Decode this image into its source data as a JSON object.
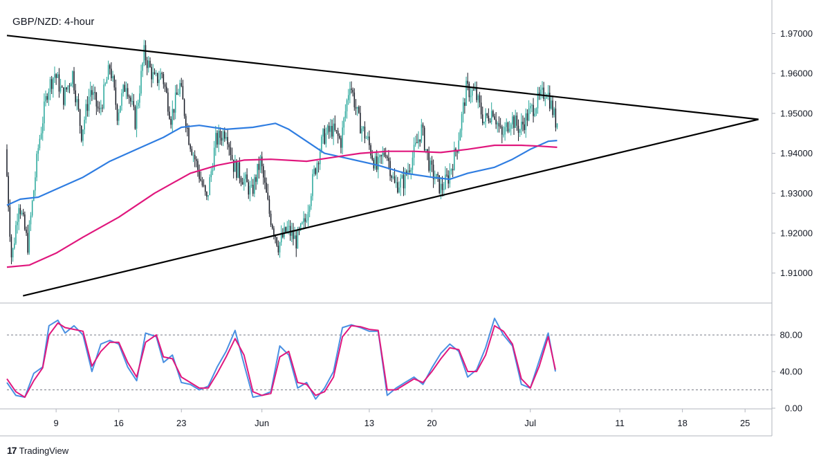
{
  "chart_data": [
    {
      "type": "candlestick",
      "title": "GBP/NZD: 4-hour",
      "ylim": [
        1.9025,
        1.977
      ],
      "y_ticks": [
        "1.97000",
        "1.96000",
        "1.95000",
        "1.94000",
        "1.93000",
        "1.92000",
        "1.91000"
      ],
      "y_tick_values": [
        1.97,
        1.96,
        1.95,
        1.94,
        1.93,
        1.92,
        1.91
      ],
      "x_ticks": [
        "9",
        "16",
        "23",
        "Jun",
        "13",
        "20",
        "Jul",
        "11",
        "18",
        "25"
      ],
      "x_tick_values": [
        9,
        16,
        23,
        32,
        44,
        51,
        62,
        72,
        79,
        86
      ],
      "xlim": [
        3.5,
        89
      ],
      "x_unit": "day index from May 1",
      "price_path": [
        [
          3.5,
          1.941
        ],
        [
          4.2,
          1.913
        ],
        [
          5.0,
          1.928
        ],
        [
          6.0,
          1.917
        ],
        [
          7.2,
          1.942
        ],
        [
          8.2,
          1.956
        ],
        [
          9.0,
          1.96
        ],
        [
          10.0,
          1.954
        ],
        [
          11.0,
          1.96
        ],
        [
          12.0,
          1.945
        ],
        [
          13.0,
          1.956
        ],
        [
          14.0,
          1.95
        ],
        [
          15.2,
          1.962
        ],
        [
          16.0,
          1.95
        ],
        [
          17.0,
          1.958
        ],
        [
          18.0,
          1.948
        ],
        [
          19.0,
          1.965
        ],
        [
          20.2,
          1.958
        ],
        [
          21.0,
          1.96
        ],
        [
          22.0,
          1.949
        ],
        [
          23.0,
          1.957
        ],
        [
          24.0,
          1.944
        ],
        [
          25.0,
          1.936
        ],
        [
          26.0,
          1.928
        ],
        [
          27.0,
          1.943
        ],
        [
          28.2,
          1.946
        ],
        [
          29.0,
          1.937
        ],
        [
          30.0,
          1.934
        ],
        [
          31.0,
          1.93
        ],
        [
          32.0,
          1.938
        ],
        [
          33.0,
          1.925
        ],
        [
          34.0,
          1.917
        ],
        [
          35.0,
          1.921
        ],
        [
          36.0,
          1.918
        ],
        [
          37.0,
          1.923
        ],
        [
          38.0,
          1.935
        ],
        [
          39.0,
          1.944
        ],
        [
          40.0,
          1.946
        ],
        [
          41.0,
          1.943
        ],
        [
          42.0,
          1.958
        ],
        [
          43.0,
          1.948
        ],
        [
          44.0,
          1.943
        ],
        [
          45.0,
          1.936
        ],
        [
          46.0,
          1.941
        ],
        [
          47.0,
          1.932
        ],
        [
          48.0,
          1.933
        ],
        [
          49.0,
          1.939
        ],
        [
          50.0,
          1.946
        ],
        [
          51.0,
          1.936
        ],
        [
          52.2,
          1.931
        ],
        [
          53.0,
          1.934
        ],
        [
          54.0,
          1.942
        ],
        [
          55.0,
          1.956
        ],
        [
          56.0,
          1.955
        ],
        [
          57.0,
          1.948
        ],
        [
          58.0,
          1.951
        ],
        [
          59.0,
          1.944
        ],
        [
          60.0,
          1.949
        ],
        [
          61.0,
          1.946
        ],
        [
          62.0,
          1.95
        ],
        [
          63.0,
          1.953
        ],
        [
          64.0,
          1.956
        ],
        [
          65.0,
          1.948
        ]
      ],
      "series": [
        {
          "name": "",
          "color": "#2f7de1",
          "values": [
            [
              3.5,
              1.927
            ],
            [
              5.0,
              1.9285
            ],
            [
              7.0,
              1.929
            ],
            [
              9.0,
              1.931
            ],
            [
              12.0,
              1.934
            ],
            [
              15.0,
              1.938
            ],
            [
              18.0,
              1.941
            ],
            [
              21.0,
              1.944
            ],
            [
              23.0,
              1.9465
            ],
            [
              25.0,
              1.947
            ],
            [
              28.0,
              1.946
            ],
            [
              31.0,
              1.9465
            ],
            [
              33.5,
              1.9475
            ],
            [
              35.0,
              1.946
            ],
            [
              37.0,
              1.943
            ],
            [
              39.0,
              1.94
            ],
            [
              42.0,
              1.9385
            ],
            [
              45.0,
              1.937
            ],
            [
              48.0,
              1.935
            ],
            [
              51.0,
              1.934
            ],
            [
              53.0,
              1.9335
            ],
            [
              55.0,
              1.935
            ],
            [
              58.0,
              1.9365
            ],
            [
              60.0,
              1.9385
            ],
            [
              62.0,
              1.941
            ],
            [
              64.0,
              1.943
            ],
            [
              65.0,
              1.9432
            ]
          ]
        },
        {
          "name": "",
          "color": "#e0177d",
          "values": [
            [
              3.5,
              1.9115
            ],
            [
              6.0,
              1.912
            ],
            [
              9.0,
              1.915
            ],
            [
              12.0,
              1.919
            ],
            [
              16.0,
              1.924
            ],
            [
              20.0,
              1.93
            ],
            [
              24.0,
              1.935
            ],
            [
              27.0,
              1.937
            ],
            [
              30.0,
              1.9383
            ],
            [
              33.0,
              1.9385
            ],
            [
              37.0,
              1.938
            ],
            [
              40.0,
              1.939
            ],
            [
              43.0,
              1.94
            ],
            [
              46.0,
              1.9405
            ],
            [
              49.0,
              1.9405
            ],
            [
              52.0,
              1.9402
            ],
            [
              55.0,
              1.941
            ],
            [
              58.0,
              1.942
            ],
            [
              61.0,
              1.942
            ],
            [
              63.0,
              1.9418
            ],
            [
              65.0,
              1.9415
            ]
          ]
        }
      ],
      "annotations": [
        {
          "type": "trendline",
          "from": [
            3.5,
            1.9695
          ],
          "to": [
            87.5,
            1.9485
          ]
        },
        {
          "type": "trendline",
          "from": [
            5.3,
            1.9043
          ],
          "to": [
            87.5,
            1.9485
          ]
        }
      ],
      "grid": false,
      "candle_up_color": "#26a69a",
      "candle_down_color": "#131722"
    },
    {
      "type": "line",
      "title": "",
      "ylim": [
        0,
        108
      ],
      "y_ticks": [
        "80.00",
        "40.00",
        "0.00"
      ],
      "y_tick_values": [
        80,
        40,
        0
      ],
      "reference_lines": [
        80,
        20
      ],
      "series": [
        {
          "name": "",
          "color": "#4a90e2",
          "values": [
            [
              3.5,
              28
            ],
            [
              4.5,
              14
            ],
            [
              5.5,
              12
            ],
            [
              6.5,
              38
            ],
            [
              7.5,
              45
            ],
            [
              8.2,
              90
            ],
            [
              9.2,
              96
            ],
            [
              10.0,
              82
            ],
            [
              11.0,
              90
            ],
            [
              12.0,
              80
            ],
            [
              13.0,
              40
            ],
            [
              14.0,
              70
            ],
            [
              15.0,
              74
            ],
            [
              16.0,
              70
            ],
            [
              17.0,
              45
            ],
            [
              18.0,
              30
            ],
            [
              19.0,
              82
            ],
            [
              20.2,
              78
            ],
            [
              21.0,
              50
            ],
            [
              22.0,
              58
            ],
            [
              23.0,
              28
            ],
            [
              24.0,
              26
            ],
            [
              25.0,
              20
            ],
            [
              26.0,
              24
            ],
            [
              27.0,
              45
            ],
            [
              28.0,
              62
            ],
            [
              29.0,
              85
            ],
            [
              30.0,
              48
            ],
            [
              31.0,
              12
            ],
            [
              32.0,
              14
            ],
            [
              33.0,
              18
            ],
            [
              34.0,
              68
            ],
            [
              35.0,
              58
            ],
            [
              36.0,
              22
            ],
            [
              37.0,
              28
            ],
            [
              38.0,
              10
            ],
            [
              39.0,
              22
            ],
            [
              40.0,
              40
            ],
            [
              41.0,
              88
            ],
            [
              42.0,
              91
            ],
            [
              43.0,
              88
            ],
            [
              44.0,
              84
            ],
            [
              45.0,
              84
            ],
            [
              46.0,
              14
            ],
            [
              47.0,
              22
            ],
            [
              48.0,
              28
            ],
            [
              49.0,
              34
            ],
            [
              50.0,
              26
            ],
            [
              51.0,
              44
            ],
            [
              52.0,
              60
            ],
            [
              53.0,
              70
            ],
            [
              54.0,
              62
            ],
            [
              55.0,
              34
            ],
            [
              56.0,
              42
            ],
            [
              57.0,
              66
            ],
            [
              58.0,
              98
            ],
            [
              59.0,
              80
            ],
            [
              60.0,
              68
            ],
            [
              61.0,
              26
            ],
            [
              62.0,
              22
            ],
            [
              63.0,
              52
            ],
            [
              64.0,
              82
            ],
            [
              64.8,
              40
            ]
          ]
        },
        {
          "name": "",
          "color": "#e0177d",
          "values": [
            [
              3.5,
              32
            ],
            [
              4.5,
              18
            ],
            [
              5.5,
              12
            ],
            [
              6.5,
              30
            ],
            [
              7.5,
              44
            ],
            [
              8.2,
              80
            ],
            [
              9.2,
              93
            ],
            [
              10.0,
              88
            ],
            [
              11.0,
              86
            ],
            [
              12.0,
              84
            ],
            [
              13.0,
              46
            ],
            [
              14.0,
              62
            ],
            [
              15.0,
              72
            ],
            [
              16.0,
              72
            ],
            [
              17.0,
              50
            ],
            [
              18.0,
              34
            ],
            [
              19.0,
              72
            ],
            [
              20.2,
              80
            ],
            [
              21.0,
              56
            ],
            [
              22.0,
              54
            ],
            [
              23.0,
              34
            ],
            [
              24.0,
              28
            ],
            [
              25.0,
              22
            ],
            [
              26.0,
              22
            ],
            [
              27.0,
              38
            ],
            [
              28.0,
              56
            ],
            [
              29.0,
              76
            ],
            [
              30.0,
              58
            ],
            [
              31.0,
              18
            ],
            [
              32.0,
              14
            ],
            [
              33.0,
              16
            ],
            [
              34.0,
              56
            ],
            [
              35.0,
              62
            ],
            [
              36.0,
              28
            ],
            [
              37.0,
              26
            ],
            [
              38.0,
              14
            ],
            [
              39.0,
              18
            ],
            [
              40.0,
              34
            ],
            [
              41.0,
              78
            ],
            [
              42.0,
              90
            ],
            [
              43.0,
              89
            ],
            [
              44.0,
              86
            ],
            [
              45.0,
              85
            ],
            [
              46.0,
              20
            ],
            [
              47.0,
              20
            ],
            [
              48.0,
              26
            ],
            [
              49.0,
              32
            ],
            [
              50.0,
              28
            ],
            [
              51.0,
              40
            ],
            [
              52.0,
              54
            ],
            [
              53.0,
              66
            ],
            [
              54.0,
              64
            ],
            [
              55.0,
              40
            ],
            [
              56.0,
              40
            ],
            [
              57.0,
              58
            ],
            [
              58.0,
              90
            ],
            [
              59.0,
              84
            ],
            [
              60.0,
              70
            ],
            [
              61.0,
              32
            ],
            [
              62.0,
              22
            ],
            [
              63.0,
              46
            ],
            [
              64.0,
              78
            ],
            [
              64.8,
              42
            ]
          ]
        }
      ]
    }
  ],
  "branding": {
    "logo_text": "17",
    "name": "TradingView"
  },
  "colors": {
    "axis_line": "#b2b5be",
    "trendline": "#000000",
    "dashed_reference": "#787b86"
  }
}
